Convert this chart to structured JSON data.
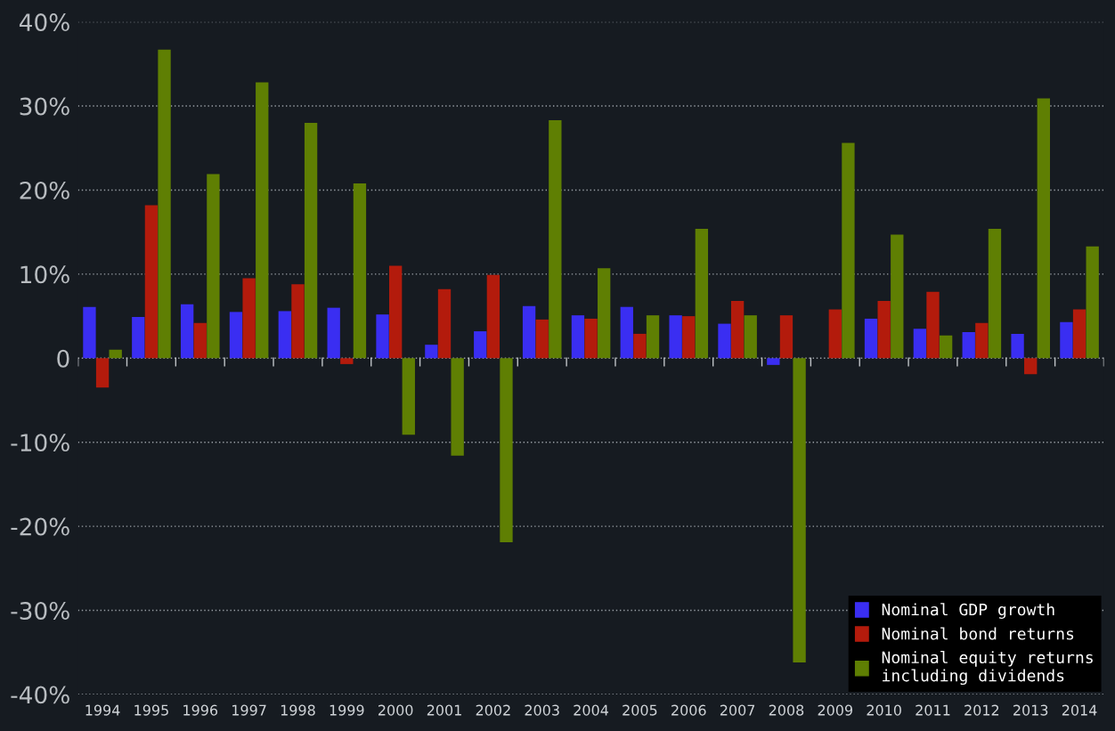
{
  "chart_data": {
    "type": "bar",
    "categories": [
      "1994",
      "1995",
      "1996",
      "1997",
      "1998",
      "1999",
      "2000",
      "2001",
      "2002",
      "2003",
      "2004",
      "2005",
      "2006",
      "2007",
      "2008",
      "2009",
      "2010",
      "2011",
      "2012",
      "2013",
      "2014"
    ],
    "series": [
      {
        "name": "Nominal GDP growth",
        "color": "#3a2ef2",
        "values": [
          6.1,
          4.9,
          6.4,
          5.5,
          5.6,
          6.0,
          5.2,
          1.6,
          3.2,
          6.2,
          5.1,
          6.1,
          5.1,
          4.1,
          -0.8,
          null,
          4.7,
          3.5,
          3.1,
          2.9,
          4.3
        ]
      },
      {
        "name": "Nominal bond returns",
        "color": "#b31b0c",
        "values": [
          -3.5,
          18.2,
          4.2,
          9.5,
          8.8,
          -0.7,
          11.0,
          8.2,
          9.9,
          4.6,
          4.7,
          2.9,
          5.0,
          6.8,
          5.1,
          5.8,
          6.8,
          7.9,
          4.2,
          -1.9,
          5.8
        ]
      },
      {
        "name": "Nominal equity returns\nincluding dividends",
        "color": "#5f7f03",
        "values": [
          1.0,
          36.7,
          21.9,
          32.8,
          28.0,
          20.8,
          -9.1,
          -11.6,
          -21.9,
          28.3,
          10.7,
          5.1,
          15.4,
          5.1,
          -36.2,
          25.6,
          14.7,
          2.7,
          15.4,
          30.9,
          13.3
        ]
      }
    ],
    "ylim": [
      -40,
      40
    ],
    "yticks": [
      {
        "value": -40,
        "label": "-40%"
      },
      {
        "value": -30,
        "label": "-30%"
      },
      {
        "value": -20,
        "label": "-20%"
      },
      {
        "value": -10,
        "label": "-10%"
      },
      0,
      {
        "value": 10,
        "label": "10%"
      },
      {
        "value": 20,
        "label": "20%"
      },
      {
        "value": 30,
        "label": "30%"
      },
      {
        "value": 40,
        "label": "40%"
      }
    ],
    "grid": "y",
    "legend": "bottom right"
  }
}
